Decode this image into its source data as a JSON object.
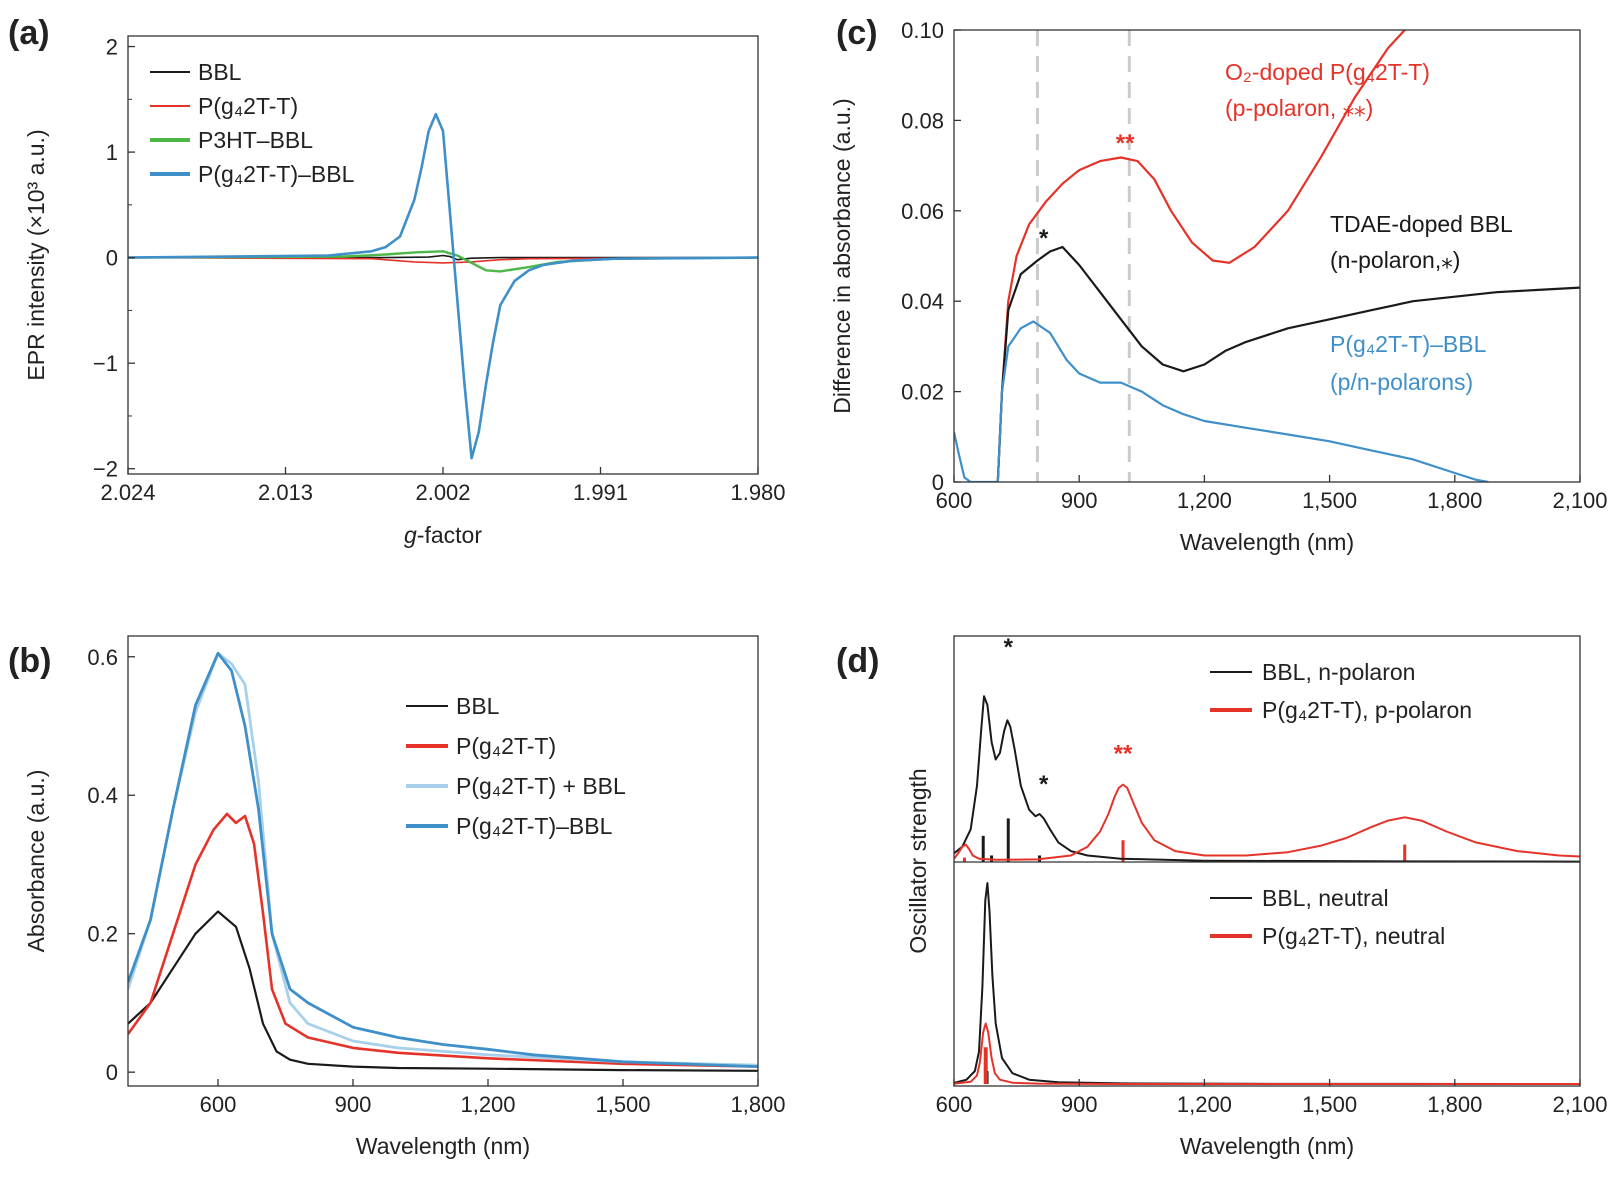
{
  "colors": {
    "black": "#1a1a1a",
    "red": "#e5332a",
    "green": "#4cb848",
    "blue": "#3f8fc8",
    "lightblue": "#a8d0ea",
    "dashed": "#cccccc"
  },
  "chart_data": [
    {
      "id": "a",
      "panel_label": "(a)",
      "type": "line",
      "xlabel_italic": "g",
      "xlabel": "-factor",
      "ylabel": "EPR intensity (×10³ a.u.)",
      "xlim": [
        2.024,
        1.98
      ],
      "ylim": [
        -2.05,
        2.1
      ],
      "xticks": [
        2.024,
        2.013,
        2.002,
        1.991,
        1.98
      ],
      "xtick_labels": [
        "2.024",
        "2.013",
        "2.002",
        "1.991",
        "1.980"
      ],
      "yticks": [
        2,
        1,
        0,
        -1,
        -2
      ],
      "ytick_labels": [
        "2",
        "1",
        "0",
        "−1",
        "−2"
      ],
      "legend": [
        {
          "label": "BBL",
          "color": "black"
        },
        {
          "label": "P(g₄2T-T)",
          "color": "red"
        },
        {
          "label": "P3HT–BBL",
          "color": "green"
        },
        {
          "label": "P(g₄2T-T)–BBL",
          "color": "blue"
        }
      ],
      "series": [
        {
          "name": "BBL",
          "color": "black",
          "x": [
            2.024,
            2.006,
            2.003,
            2.002,
            2.0015,
            2.001,
            2.0,
            1.998,
            1.98
          ],
          "y": [
            0,
            0,
            0.005,
            0.02,
            0.01,
            -0.02,
            -0.005,
            0,
            0
          ]
        },
        {
          "name": "P(g₄2T-T)",
          "color": "red",
          "x": [
            2.024,
            2.007,
            2.004,
            2.002,
            2.0,
            1.998,
            1.996,
            1.98
          ],
          "y": [
            0,
            -0.01,
            -0.04,
            -0.05,
            -0.04,
            -0.02,
            -0.01,
            0
          ]
        },
        {
          "name": "P3HT–BBL",
          "color": "green",
          "x": [
            2.024,
            2.009,
            2.006,
            2.004,
            2.002,
            2.001,
            2.0,
            1.999,
            1.998,
            1.996,
            1.994,
            1.99,
            1.98
          ],
          "y": [
            0,
            0.01,
            0.03,
            0.05,
            0.06,
            0.02,
            -0.05,
            -0.12,
            -0.13,
            -0.09,
            -0.04,
            -0.01,
            0
          ]
        },
        {
          "name": "P(g₄2T-T)–BBL",
          "color": "blue",
          "x": [
            2.024,
            2.01,
            2.007,
            2.006,
            2.005,
            2.004,
            2.0035,
            2.003,
            2.0025,
            2.002,
            2.0015,
            2.001,
            2.0005,
            2.0,
            1.9995,
            1.999,
            1.9985,
            1.998,
            1.997,
            1.996,
            1.995,
            1.993,
            1.99,
            1.98
          ],
          "y": [
            0,
            0.02,
            0.06,
            0.1,
            0.2,
            0.55,
            0.85,
            1.2,
            1.36,
            1.2,
            0.4,
            -0.4,
            -1.2,
            -1.9,
            -1.65,
            -1.2,
            -0.8,
            -0.45,
            -0.22,
            -0.12,
            -0.07,
            -0.03,
            -0.01,
            0
          ]
        }
      ]
    },
    {
      "id": "b",
      "panel_label": "(b)",
      "type": "line",
      "xlabel": "Wavelength (nm)",
      "ylabel": "Absorbance (a.u.)",
      "xlim": [
        400,
        1800
      ],
      "ylim": [
        -0.02,
        0.63
      ],
      "xticks": [
        600,
        900,
        1200,
        1500,
        1800
      ],
      "xtick_labels": [
        "600",
        "900",
        "1,200",
        "1,500",
        "1,800"
      ],
      "yticks": [
        0,
        0.2,
        0.4,
        0.6
      ],
      "ytick_labels": [
        "0",
        "0.2",
        "0.4",
        "0.6"
      ],
      "legend": [
        {
          "label": "BBL",
          "color": "black"
        },
        {
          "label": "P(g₄2T-T)",
          "color": "red"
        },
        {
          "label": "P(g₄2T-T) + BBL",
          "color": "lightblue"
        },
        {
          "label": "P(g₄2T-T)–BBL",
          "color": "blue"
        }
      ],
      "series": [
        {
          "name": "BBL",
          "color": "black",
          "x": [
            400,
            450,
            500,
            550,
            600,
            640,
            670,
            700,
            730,
            760,
            800,
            900,
            1000,
            1200,
            1500,
            1800
          ],
          "y": [
            0.07,
            0.1,
            0.15,
            0.2,
            0.232,
            0.21,
            0.15,
            0.07,
            0.03,
            0.018,
            0.012,
            0.008,
            0.006,
            0.005,
            0.003,
            0.002
          ]
        },
        {
          "name": "P(g₄2T-T)",
          "color": "red",
          "x": [
            400,
            450,
            500,
            550,
            590,
            620,
            640,
            660,
            680,
            700,
            720,
            750,
            800,
            900,
            1000,
            1200,
            1500,
            1800
          ],
          "y": [
            0.055,
            0.1,
            0.2,
            0.3,
            0.35,
            0.373,
            0.36,
            0.37,
            0.33,
            0.23,
            0.12,
            0.07,
            0.05,
            0.035,
            0.028,
            0.02,
            0.012,
            0.008
          ]
        },
        {
          "name": "P(g₄2T-T) + BBL",
          "color": "lightblue",
          "x": [
            400,
            450,
            500,
            550,
            600,
            630,
            660,
            690,
            720,
            760,
            800,
            900,
            1000,
            1200,
            1500,
            1800
          ],
          "y": [
            0.12,
            0.22,
            0.38,
            0.52,
            0.605,
            0.59,
            0.56,
            0.42,
            0.2,
            0.1,
            0.07,
            0.045,
            0.035,
            0.025,
            0.015,
            0.01
          ]
        },
        {
          "name": "P(g₄2T-T)–BBL",
          "color": "blue",
          "x": [
            400,
            450,
            500,
            550,
            600,
            630,
            660,
            690,
            720,
            760,
            800,
            900,
            1000,
            1100,
            1200,
            1300,
            1500,
            1800
          ],
          "y": [
            0.13,
            0.22,
            0.38,
            0.53,
            0.605,
            0.58,
            0.5,
            0.38,
            0.2,
            0.12,
            0.1,
            0.065,
            0.05,
            0.04,
            0.033,
            0.025,
            0.015,
            0.008
          ]
        }
      ]
    },
    {
      "id": "c",
      "panel_label": "(c)",
      "type": "line",
      "xlabel": "Wavelength (nm)",
      "ylabel": "Difference in absorbance (a.u.)",
      "xlim": [
        600,
        2100
      ],
      "ylim": [
        0,
        0.1
      ],
      "xticks": [
        600,
        900,
        1200,
        1500,
        1800,
        2100
      ],
      "xtick_labels": [
        "600",
        "900",
        "1,200",
        "1,500",
        "1,800",
        "2,100"
      ],
      "yticks": [
        0,
        0.02,
        0.04,
        0.06,
        0.08,
        0.1
      ],
      "ytick_labels": [
        "0",
        "0.02",
        "0.04",
        "0.06",
        "0.08",
        "0.10"
      ],
      "dashed_lines_x": [
        800,
        1020
      ],
      "labels": [
        {
          "lines": [
            "O₂-doped P(g₄2T-T)",
            "(p-polaron, ⁎⁎)"
          ],
          "color": "red"
        },
        {
          "lines": [
            "TDAE-doped BBL",
            "(n-polaron,⁎)"
          ],
          "color": "black"
        },
        {
          "lines": [
            "P(g₄2T-T)–BBL",
            "(p/n-polarons)"
          ],
          "color": "blue"
        }
      ],
      "stars": [
        {
          "text": "**",
          "color": "red",
          "x": 1010,
          "y": 0.075
        },
        {
          "text": "*",
          "color": "black",
          "x": 815,
          "y": 0.054
        }
      ],
      "series": [
        {
          "name": "O₂-doped P(g₄2T-T)",
          "color": "red",
          "x": [
            705,
            715,
            730,
            750,
            780,
            820,
            860,
            900,
            950,
            1000,
            1040,
            1080,
            1120,
            1170,
            1220,
            1260,
            1320,
            1400,
            1480,
            1560,
            1640,
            1700
          ],
          "y": [
            0,
            0.02,
            0.04,
            0.05,
            0.057,
            0.062,
            0.066,
            0.069,
            0.071,
            0.0718,
            0.071,
            0.067,
            0.06,
            0.053,
            0.049,
            0.0485,
            0.052,
            0.06,
            0.072,
            0.085,
            0.096,
            0.102
          ]
        },
        {
          "name": "TDAE-doped BBL",
          "color": "black",
          "x": [
            705,
            715,
            730,
            760,
            800,
            830,
            860,
            900,
            950,
            1000,
            1050,
            1100,
            1150,
            1200,
            1250,
            1300,
            1400,
            1500,
            1600,
            1700,
            1800,
            1900,
            2000,
            2100
          ],
          "y": [
            0,
            0.02,
            0.038,
            0.046,
            0.049,
            0.051,
            0.052,
            0.048,
            0.042,
            0.036,
            0.03,
            0.026,
            0.0245,
            0.026,
            0.029,
            0.031,
            0.034,
            0.036,
            0.038,
            0.04,
            0.041,
            0.042,
            0.0425,
            0.043
          ]
        },
        {
          "name": "P(g₄2T-T)–BBL",
          "color": "blue",
          "x": [
            600,
            612,
            625,
            640,
            700,
            705,
            715,
            730,
            760,
            790,
            830,
            870,
            900,
            950,
            1000,
            1050,
            1100,
            1150,
            1200,
            1300,
            1400,
            1500,
            1600,
            1700,
            1800,
            1850,
            1880
          ],
          "y": [
            0.011,
            0.006,
            0.001,
            0,
            0,
            0,
            0.02,
            0.03,
            0.034,
            0.0355,
            0.033,
            0.027,
            0.024,
            0.022,
            0.022,
            0.02,
            0.017,
            0.015,
            0.0135,
            0.012,
            0.0105,
            0.009,
            0.007,
            0.005,
            0.002,
            0.0005,
            0
          ]
        }
      ]
    },
    {
      "id": "d",
      "panel_label": "(d)",
      "type": "line",
      "xlabel": "Wavelength (nm)",
      "ylabel": "Oscillator strength",
      "xlim": [
        600,
        2100
      ],
      "xticks": [
        600,
        900,
        1200,
        1500,
        1800,
        2100
      ],
      "xtick_labels": [
        "600",
        "900",
        "1,200",
        "1,500",
        "1,800",
        "2,100"
      ],
      "top": {
        "legend": [
          {
            "label": "BBL, n-polaron",
            "color": "black"
          },
          {
            "label": "P(g₄2T-T), p-polaron",
            "color": "red"
          }
        ],
        "stars": [
          {
            "text": "*",
            "color": "black",
            "x": 730,
            "y": 0.95
          },
          {
            "text": "*",
            "color": "black",
            "x": 815,
            "y": 0.32
          },
          {
            "text": "**",
            "color": "red",
            "x": 1005,
            "y": 0.46
          }
        ],
        "sticks": [
          {
            "color": "black",
            "x": 670,
            "h": 0.12
          },
          {
            "color": "black",
            "x": 730,
            "h": 0.2
          },
          {
            "color": "black",
            "x": 690,
            "h": 0.03
          },
          {
            "color": "black",
            "x": 805,
            "h": 0.03
          },
          {
            "color": "red",
            "x": 625,
            "h": 0.02
          },
          {
            "color": "red",
            "x": 1005,
            "h": 0.1
          },
          {
            "color": "red",
            "x": 1680,
            "h": 0.08
          }
        ],
        "series": [
          {
            "name": "BBL, n-polaron",
            "color": "black",
            "x": [
              600,
              620,
              640,
              655,
              665,
              672,
              680,
              690,
              700,
              710,
              720,
              728,
              735,
              745,
              760,
              780,
              795,
              805,
              815,
              830,
              850,
              880,
              920,
              1000,
              1200,
              1600,
              2100
            ],
            "y": [
              0.04,
              0.07,
              0.15,
              0.35,
              0.6,
              0.76,
              0.72,
              0.55,
              0.47,
              0.5,
              0.6,
              0.65,
              0.62,
              0.52,
              0.35,
              0.24,
              0.21,
              0.22,
              0.2,
              0.15,
              0.09,
              0.05,
              0.03,
              0.015,
              0.006,
              0.003,
              0.002
            ]
          },
          {
            "name": "P(g₄2T-T), p-polaron",
            "color": "red",
            "x": [
              600,
              610,
              620,
              628,
              636,
              645,
              660,
              700,
              800,
              880,
              920,
              950,
              970,
              985,
              995,
              1005,
              1015,
              1030,
              1050,
              1080,
              1130,
              1200,
              1300,
              1400,
              1480,
              1540,
              1600,
              1640,
              1680,
              1720,
              1780,
              1850,
              1950,
              2050,
              2100
            ],
            "y": [
              0.015,
              0.04,
              0.07,
              0.08,
              0.06,
              0.03,
              0.015,
              0.01,
              0.012,
              0.03,
              0.07,
              0.14,
              0.22,
              0.3,
              0.34,
              0.355,
              0.34,
              0.27,
              0.18,
              0.1,
              0.05,
              0.03,
              0.03,
              0.045,
              0.075,
              0.11,
              0.16,
              0.19,
              0.205,
              0.19,
              0.14,
              0.09,
              0.05,
              0.03,
              0.025
            ]
          }
        ]
      },
      "bottom": {
        "legend": [
          {
            "label": "BBL, neutral",
            "color": "black"
          },
          {
            "label": "P(g₄2T-T), neutral",
            "color": "red"
          }
        ],
        "sticks": [
          {
            "color": "black",
            "x": 678,
            "h": 0.06
          },
          {
            "color": "red",
            "x": 676,
            "h": 0.17
          }
        ],
        "series": [
          {
            "name": "BBL, neutral",
            "color": "black",
            "x": [
              600,
              630,
              650,
              660,
              668,
              675,
              680,
              685,
              692,
              700,
              715,
              740,
              780,
              850,
              1000,
              1300,
              2100
            ],
            "y": [
              0.005,
              0.02,
              0.06,
              0.15,
              0.45,
              0.85,
              0.93,
              0.8,
              0.5,
              0.28,
              0.12,
              0.05,
              0.02,
              0.008,
              0.003,
              0.001,
              0
            ]
          },
          {
            "name": "P(g₄2T-T), neutral",
            "color": "red",
            "x": [
              600,
              640,
              655,
              662,
              670,
              676,
              682,
              690,
              698,
              710,
              740,
              800,
              1000,
              2100
            ],
            "y": [
              0.002,
              0.01,
              0.04,
              0.1,
              0.24,
              0.28,
              0.24,
              0.12,
              0.05,
              0.02,
              0.006,
              0.002,
              0,
              0
            ]
          }
        ]
      }
    }
  ]
}
